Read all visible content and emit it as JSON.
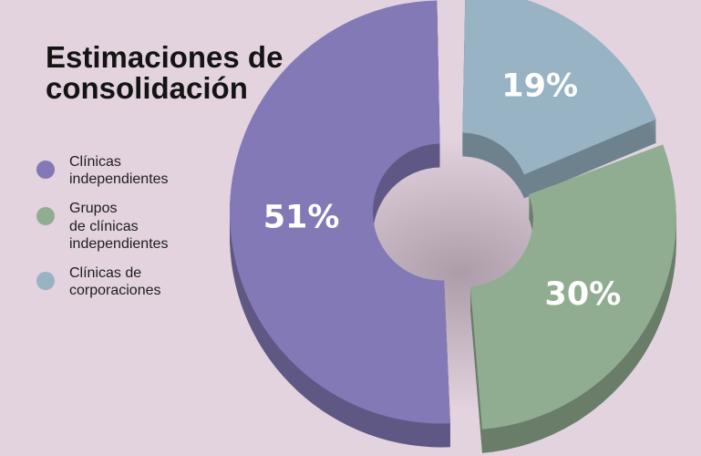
{
  "title": "Estimaciones de consolidación",
  "chart_data": {
    "type": "pie",
    "style": "3d-donut",
    "slices": [
      {
        "label": "Clínicas\nindependientes",
        "value": 51,
        "display": "51%",
        "color": "#8379b6"
      },
      {
        "label": "Grupos\nde clínicas\nindependientes",
        "value": 30,
        "display": "30%",
        "color": "#91ad91"
      },
      {
        "label": "Clínicas de\ncorporaciones",
        "value": 19,
        "display": "19%",
        "color": "#98b3c4"
      }
    ],
    "legend_position": "left"
  }
}
